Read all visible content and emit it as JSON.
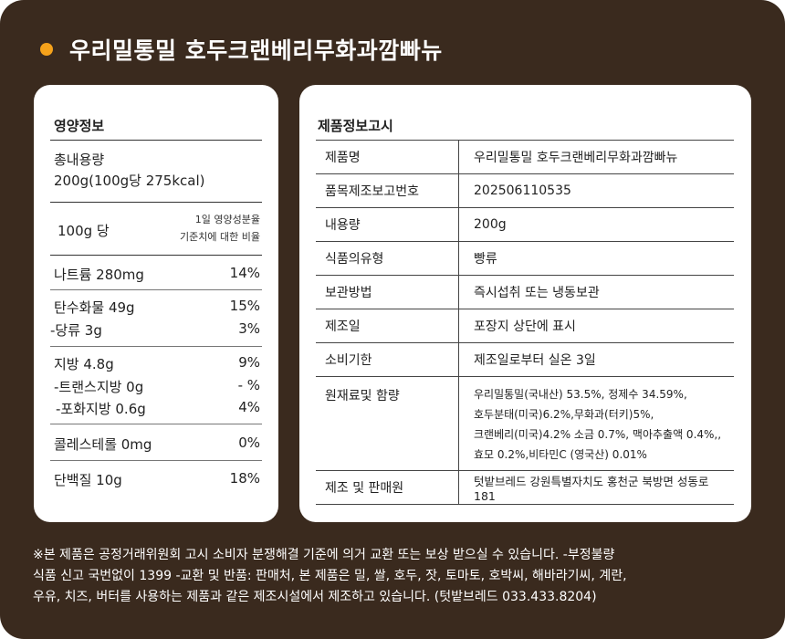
{
  "title": "우리밀통밀 호두크랜베리무화과깜빠뉴",
  "colors": {
    "background": "#3a2a1e",
    "accent_dot": "#f5a21b",
    "card": "#ffffff"
  },
  "nutrition": {
    "heading": "영양정보",
    "total_label": "총내용량",
    "total_value": "200g(100g당 275kcal)",
    "per_label": "100g 당",
    "daily_line1": "1일 영양성분율",
    "daily_line2": "기준치에 대한 비율",
    "rows": [
      {
        "name": "나트륨 280mg",
        "pct": "14%"
      },
      {
        "name": "탄수화물 49g",
        "pct": "15%"
      },
      {
        "name": "-당류  3g",
        "pct": "3%"
      },
      {
        "name": "지방  4.8g",
        "pct": "9%"
      },
      {
        "name": "-트랜스지방 0g",
        "pct": "- %"
      },
      {
        "name": "-포화지방 0.6g",
        "pct": "4%"
      },
      {
        "name": "콜레스테롤  0mg",
        "pct": "0%"
      },
      {
        "name": "단백질 10g",
        "pct": "18%"
      }
    ]
  },
  "info": {
    "heading": "제품정보고시",
    "rows": [
      {
        "key": "제품명",
        "value": "우리밀통밀 호두크랜베리무화과깜빠뉴"
      },
      {
        "key": "품목제조보고번호",
        "value": "202506110535"
      },
      {
        "key": "내용량",
        "value": "200g"
      },
      {
        "key": "식품의유형",
        "value": "빵류"
      },
      {
        "key": "보관방법",
        "value": "즉시섭취 또는 냉동보관"
      },
      {
        "key": "제조일",
        "value": "포장지 상단에 표시"
      },
      {
        "key": "소비기한",
        "value": "제조일로부터 실온 3일"
      },
      {
        "key": "원재료및 함량",
        "value_lines": [
          "우리밀통밀(국내산) 53.5%, 정제수 34.59%,",
          "호두분태(미국)6.2%,무화과(터키)5%,",
          "크랜베리(미국)4.2% 소금 0.7%, 맥아추출액 0.4%,,",
          "효모 0.2%,비타민C (영국산) 0.01%"
        ]
      },
      {
        "key": "제조 및 판매원",
        "value": "텃밭브레드  강원특별자치도 홍천군 북방면 성동로 181"
      }
    ]
  },
  "footer": {
    "lines": [
      "※본 제품은 공정거래위원회 고시 소비자 분쟁해결 기준에 의거 교환 또는 보상 받으실 수 있습니다. -부정불량",
      "식품 신고 국번없이 1399 -교환 및 반품: 판매처, 본 제품은 밀, 쌀, 호두, 잣, 토마토, 호박씨, 해바라기씨, 계란,",
      "우유, 치즈, 버터를 사용하는 제품과 같은 제조시설에서 제조하고 있습니다. (텃밭브레드 033.433.8204)"
    ]
  }
}
